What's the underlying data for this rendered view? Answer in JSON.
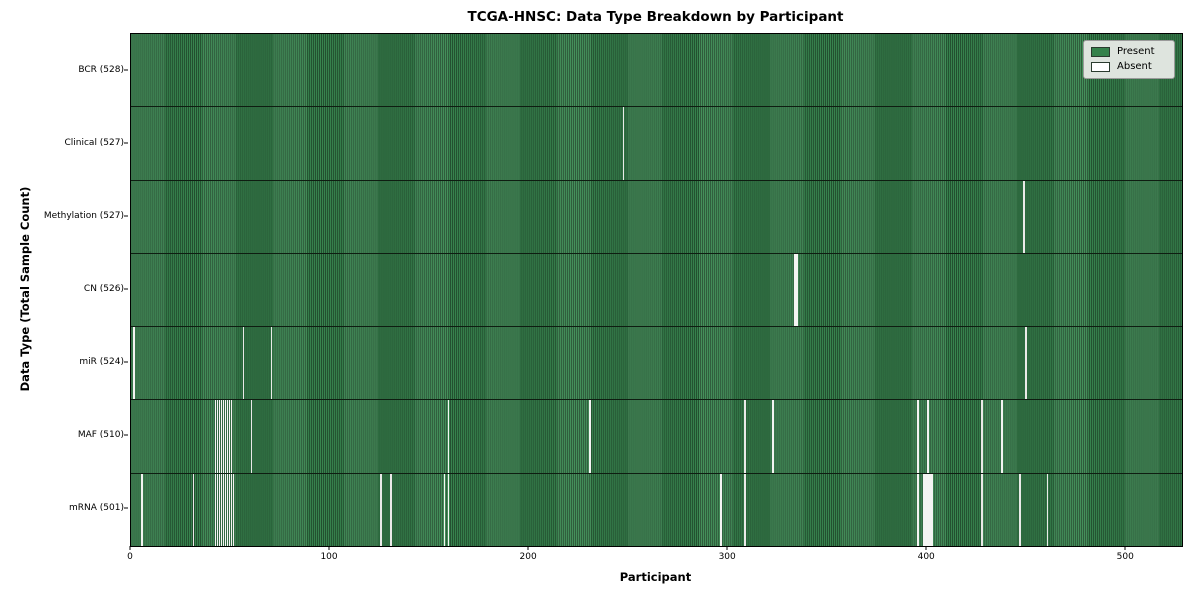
{
  "title": "TCGA-HNSC: Data Type Breakdown by Participant",
  "xaxis_label": "Participant",
  "yaxis_label": "Data Type (Total Sample Count)",
  "legend": {
    "present_label": "Present",
    "absent_label": "Absent",
    "background": "#DEE4DE",
    "swatch_present_color": "#35824B",
    "swatch_absent_color": "#FFFFFF",
    "swatch_edge_color": "#2A3B2E"
  },
  "colors": {
    "present": "#3A8A52",
    "cell_edge": "#245231",
    "absent": "#F4F4F2",
    "row_separator": "#0E1D11",
    "plot_border": "#000000"
  },
  "chart_data": {
    "type": "heatmap",
    "title": "TCGA-HNSC: Data Type Breakdown by Participant",
    "xlabel": "Participant",
    "ylabel": "Data Type (Total Sample Count)",
    "legend": [
      "Present",
      "Absent"
    ],
    "legend_position": "upper right",
    "grid": false,
    "total_participants": 528,
    "x_range": [
      0,
      528
    ],
    "x_ticks": [
      0,
      100,
      200,
      300,
      400,
      500
    ],
    "x_tick_labels": [
      "0",
      "100",
      "200",
      "300",
      "400",
      "500"
    ],
    "rows": [
      {
        "name": "BCR",
        "label": "BCR (528)",
        "present_count": 528,
        "absent_participants": []
      },
      {
        "name": "Clinical",
        "label": "Clinical (527)",
        "present_count": 527,
        "absent_participants": [
          247
        ]
      },
      {
        "name": "Methylation",
        "label": "Methylation (527)",
        "present_count": 527,
        "absent_participants": [
          448
        ]
      },
      {
        "name": "CN",
        "label": "CN (526)",
        "present_count": 526,
        "absent_participants": [
          333,
          334
        ]
      },
      {
        "name": "miR",
        "label": "miR (524)",
        "present_count": 524,
        "absent_participants": [
          1,
          56,
          70,
          449
        ]
      },
      {
        "name": "MAF",
        "label": "MAF (510)",
        "present_count": 510,
        "absent_participants": [
          42,
          43,
          44,
          45,
          46,
          47,
          48,
          49,
          50,
          60,
          159,
          230,
          308,
          322,
          395,
          400,
          427,
          437
        ]
      },
      {
        "name": "mRNA",
        "label": "mRNA (501)",
        "present_count": 501,
        "absent_participants": [
          5,
          31,
          42,
          43,
          44,
          45,
          46,
          47,
          48,
          49,
          50,
          51,
          125,
          130,
          157,
          159,
          296,
          308,
          395,
          398,
          399,
          400,
          401,
          402,
          427,
          446,
          460
        ]
      }
    ]
  }
}
